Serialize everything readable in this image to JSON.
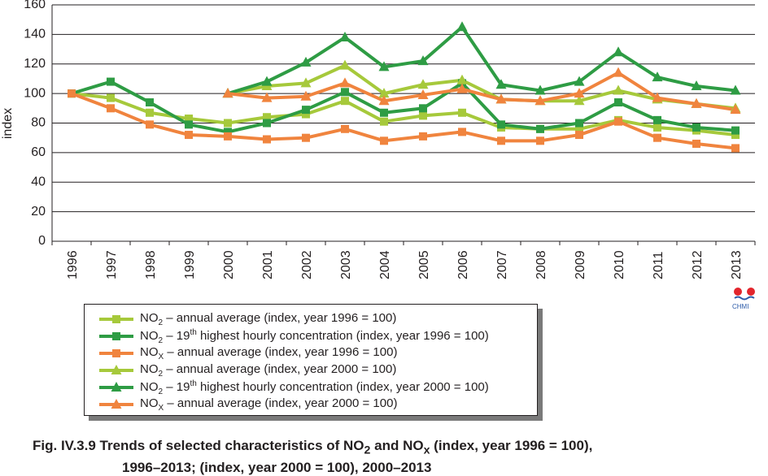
{
  "chart_data": {
    "type": "line",
    "ylabel": "index",
    "xlabel": "",
    "ylim": [
      0,
      160
    ],
    "yticks": [
      "0",
      "20",
      "40",
      "60",
      "80",
      "100",
      "120",
      "140",
      "160"
    ],
    "categories": [
      "1996",
      "1997",
      "1998",
      "1999",
      "2000",
      "2001",
      "2002",
      "2003",
      "2004",
      "2005",
      "2006",
      "2007",
      "2008",
      "2009",
      "2010",
      "2011",
      "2012",
      "2013"
    ],
    "grid": true,
    "legend_position": "bottom-left",
    "series": [
      {
        "name": "NO2 – annual average (index, year 1996 = 100)",
        "color": "#a6c93b",
        "marker": "square",
        "values": [
          100,
          97,
          87,
          83,
          80,
          84,
          86,
          95,
          81,
          85,
          87,
          77,
          76,
          76,
          82,
          77,
          75,
          72
        ]
      },
      {
        "name": "NO2 – 19th highest hourly concentration (index, year 1996 = 100)",
        "color": "#2e9c44",
        "marker": "square",
        "values": [
          100,
          108,
          94,
          79,
          74,
          80,
          89,
          101,
          87,
          90,
          107,
          79,
          76,
          80,
          94,
          82,
          77,
          75
        ]
      },
      {
        "name": "NOX – annual average (index, year 1996 = 100)",
        "color": "#f0843e",
        "marker": "square",
        "values": [
          100,
          90,
          79,
          72,
          71,
          69,
          70,
          76,
          68,
          71,
          74,
          68,
          68,
          72,
          81,
          70,
          66,
          63
        ]
      },
      {
        "name": "NO2 – annual average (index, year 2000 = 100)",
        "color": "#a6c93b",
        "marker": "triangle",
        "values": [
          null,
          null,
          null,
          null,
          100,
          105,
          107,
          119,
          100,
          106,
          109,
          96,
          95,
          95,
          102,
          96,
          93,
          90
        ]
      },
      {
        "name": "NO2 – 19th highest hourly concentration (index, year 2000 = 100)",
        "color": "#2e9c44",
        "marker": "triangle",
        "values": [
          null,
          null,
          null,
          null,
          100,
          108,
          121,
          138,
          118,
          122,
          145,
          106,
          102,
          108,
          128,
          111,
          105,
          102
        ]
      },
      {
        "name": "NOX – annual average (index, year 2000 = 100)",
        "color": "#f0843e",
        "marker": "triangle",
        "values": [
          null,
          null,
          null,
          null,
          100,
          97,
          98,
          107,
          95,
          99,
          103,
          96,
          95,
          100,
          114,
          97,
          93,
          89
        ]
      }
    ]
  },
  "legend": [
    {
      "pre": "NO",
      "sub": "2",
      "sup": "",
      "post": " – annual average (index, year 1996 = 100)"
    },
    {
      "pre": "NO",
      "sub": "2",
      "sup": "",
      "post": " – 19"
    },
    {
      "pre": "NO",
      "sub": "X",
      "sup": "",
      "post": " – annual average (index, year 1996 = 100)"
    },
    {
      "pre": "NO",
      "sub": "2",
      "sup": "",
      "post": " – annual average (index, year 2000 = 100)"
    },
    {
      "pre": "NO",
      "sub": "2",
      "sup": "",
      "post": " – 19"
    },
    {
      "pre": "NO",
      "sub": "X",
      "sup": "",
      "post": " – annual average (index, year 2000 = 100)"
    }
  ],
  "legend_tail": {
    "sup": "th",
    "rest": " highest hourly concentration (index, year 1996 = 100)",
    "rest2000": " highest hourly concentration (index, year 2000 = 100)"
  },
  "logo": {
    "text": "CHMI"
  },
  "caption": {
    "line1_a": "Fig. IV.3.9  Trends of selected characteristics of NO",
    "line1_sub1": "2",
    "line1_b": " and NO",
    "line1_sub2": "x",
    "line1_c": " (index, year 1996 = 100),",
    "line2": "1996–2013; (index, year 2000 = 100), 2000–2013"
  }
}
